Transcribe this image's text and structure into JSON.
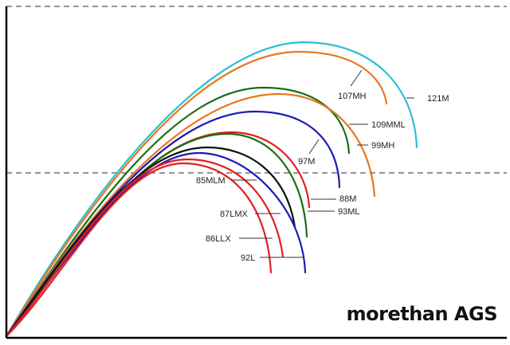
{
  "chart_data": {
    "type": "line",
    "title": "",
    "xlabel": "",
    "ylabel": "",
    "grid": false,
    "legend": "none",
    "reference_lines": 2,
    "series": [
      {
        "name": "121M",
        "color": "#2bbfd0"
      },
      {
        "name": "107MH",
        "color": "#e8761e"
      },
      {
        "name": "109MML",
        "color": "#1a6e12"
      },
      {
        "name": "99MH",
        "color": "#e8761e"
      },
      {
        "name": "97M",
        "color": "#1c1cb8"
      },
      {
        "name": "88M",
        "color": "#e02020"
      },
      {
        "name": "93ML",
        "color": "#1a6e12"
      },
      {
        "name": "85MLM",
        "color": "#111111"
      },
      {
        "name": "87LMX",
        "color": "#1c1cb8"
      },
      {
        "name": "86LLX",
        "color": "#e02020"
      },
      {
        "name": "92L",
        "color": "#e02020"
      }
    ]
  },
  "brand": {
    "text": "morethan AGS"
  }
}
